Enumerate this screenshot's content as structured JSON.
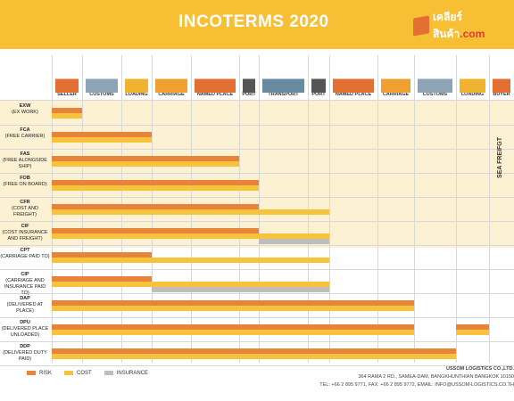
{
  "header": {
    "title": "INCOTERMS 2020",
    "logo_text": "เคลียร์สินค้า",
    "logo_suffix": ".com"
  },
  "columns": [
    "SELLER",
    "CUSTOMS",
    "LOADING",
    "CARRIAGE",
    "NAMED PLACE",
    "PORT",
    "TRANSPORT",
    "PORT",
    "NAMED PLACE",
    "CARRIAGE",
    "CUSTOMS",
    "LOADING",
    "BUYER"
  ],
  "rows": [
    {
      "code": "EXW",
      "desc": "(EX WORK)"
    },
    {
      "code": "FCA",
      "desc": "(FREE CARRIER)"
    },
    {
      "code": "FAS",
      "desc": "(FREE ALONGSIDE SHIP)"
    },
    {
      "code": "FOB",
      "desc": "(FREE ON BOARD)"
    },
    {
      "code": "CFR",
      "desc": "(COST AND FREIGHT)"
    },
    {
      "code": "CIF",
      "desc": "(COST INSURANCE AND FREIGHT)"
    },
    {
      "code": "CPT",
      "desc": "(CARRIAGE PAID TO)"
    },
    {
      "code": "CIP",
      "desc": "(CARRIAGE AND INSURANCE PAID TO)"
    },
    {
      "code": "DAP",
      "desc": "(DELIVERED AT PLACE)"
    },
    {
      "code": "DPU",
      "desc": "(DELIVERED PLACE UNLOADED)"
    },
    {
      "code": "DDP",
      "desc": "(DELIVERED DUTY PAID)"
    }
  ],
  "sea_label": "SEA FREIFGT",
  "legend": {
    "risk": "RISK",
    "cost": "COST",
    "insurance": "INSURANCE"
  },
  "colors": {
    "risk": "#e8833a",
    "cost": "#f7c33c",
    "insurance": "#bdbdbd",
    "header": "#f7bf33"
  },
  "footer": {
    "company": "USSOM LOGISTICS CO.,LTD.",
    "address": "364 RAMA 2 RD., SAMEA-DAM, BANGKHUNTHIAN BANGKOK 10150",
    "contact": "TEL: +66 2 895 9771, FAX: +66 2 895 9772, EMAIL: INFO@USSOM-LOGISTICS.CO.TH"
  }
}
